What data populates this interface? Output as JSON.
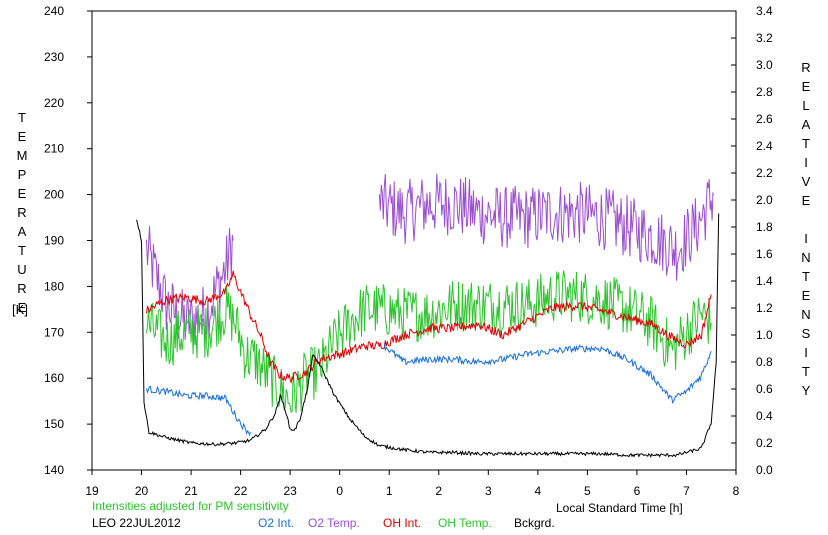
{
  "chart_data": {
    "type": "line",
    "left_axis": {
      "label_letters": [
        "T",
        "E",
        "M",
        "P",
        "E",
        "R",
        "A",
        "T",
        "U",
        "R",
        "E"
      ],
      "unit": "[K]",
      "range": [
        140,
        240
      ],
      "ticks": [
        "140",
        "150",
        "160",
        "170",
        "180",
        "190",
        "200",
        "210",
        "220",
        "230",
        "240"
      ]
    },
    "right_axis": {
      "label_letters": [
        "R",
        "E",
        "L",
        "A",
        "T",
        "I",
        "V",
        "E",
        "",
        "I",
        "N",
        "T",
        "E",
        "N",
        "S",
        "I",
        "T",
        "Y"
      ],
      "range": [
        0.0,
        3.4
      ],
      "ticks": [
        "0.0",
        "0.2",
        "0.4",
        "0.6",
        "0.8",
        "1.0",
        "1.2",
        "1.4",
        "1.6",
        "1.8",
        "2.0",
        "2.2",
        "2.4",
        "2.6",
        "2.8",
        "3.0",
        "3.2",
        "3.4"
      ]
    },
    "x_axis": {
      "label": "Local Standard Time [h]",
      "range": [
        19,
        32
      ],
      "ticks": [
        "19",
        "20",
        "21",
        "22",
        "23",
        "0",
        "1",
        "2",
        "3",
        "4",
        "5",
        "6",
        "7",
        "8"
      ]
    },
    "notes": {
      "adjusted": "Intensities adjusted for PM sensitivity",
      "station_date": "LEO 22JUL2012"
    },
    "legend": [
      {
        "label": "O2 Int.",
        "color": "#1a6fd6"
      },
      {
        "label": "O2 Temp.",
        "color": "#9a4fd0"
      },
      {
        "label": "OH Int.",
        "color": "#dd0000"
      },
      {
        "label": "OH Temp.",
        "color": "#2ec42e"
      },
      {
        "label": "Bckgrd.",
        "color": "#000000"
      }
    ],
    "series": [
      {
        "name": "O2 Temp.",
        "color": "#9a4fd0",
        "axis": "left",
        "noise": 7,
        "segments": [
          [
            [
              20.1,
              188
            ],
            [
              20.5,
              176
            ],
            [
              20.9,
              172
            ],
            [
              21.3,
              174
            ],
            [
              21.7,
              184
            ],
            [
              21.85,
              190
            ]
          ],
          [
            [
              24.8,
              198
            ],
            [
              25.3,
              196
            ],
            [
              25.8,
              198
            ],
            [
              26.3,
              198
            ],
            [
              26.8,
              196
            ],
            [
              27.3,
              195
            ],
            [
              27.8,
              195
            ],
            [
              28.3,
              196
            ],
            [
              28.8,
              196
            ],
            [
              29.3,
              195
            ],
            [
              29.8,
              193
            ],
            [
              30.3,
              191
            ],
            [
              30.8,
              188
            ],
            [
              31.2,
              193
            ],
            [
              31.5,
              199
            ],
            [
              31.55,
              200
            ]
          ]
        ]
      },
      {
        "name": "OH Temp.",
        "color": "#2ec42e",
        "axis": "left",
        "noise": 6,
        "segments": [
          [
            [
              20.1,
              172
            ],
            [
              20.5,
              168
            ],
            [
              20.9,
              170
            ],
            [
              21.3,
              170
            ],
            [
              21.7,
              175
            ],
            [
              21.9,
              172
            ],
            [
              22.1,
              165
            ],
            [
              22.3,
              164
            ],
            [
              22.6,
              160
            ],
            [
              23.0,
              155
            ],
            [
              23.3,
              160
            ],
            [
              23.6,
              162
            ],
            [
              23.9,
              168
            ],
            [
              24.2,
              172
            ],
            [
              24.5,
              175
            ],
            [
              24.8,
              175
            ],
            [
              25.3,
              174
            ],
            [
              25.8,
              174
            ],
            [
              26.3,
              176
            ],
            [
              26.8,
              176
            ],
            [
              27.3,
              176
            ],
            [
              27.8,
              176
            ],
            [
              28.3,
              178
            ],
            [
              28.8,
              178
            ],
            [
              29.3,
              177
            ],
            [
              29.8,
              175
            ],
            [
              30.3,
              172
            ],
            [
              30.7,
              166
            ],
            [
              31.0,
              170
            ],
            [
              31.3,
              174
            ],
            [
              31.5,
              172
            ]
          ]
        ]
      },
      {
        "name": "OH Int.",
        "color": "#dd0000",
        "axis": "right",
        "noise": 0.035,
        "segments": [
          [
            [
              20.1,
              1.18
            ],
            [
              20.5,
              1.26
            ],
            [
              20.9,
              1.28
            ],
            [
              21.3,
              1.25
            ],
            [
              21.7,
              1.32
            ],
            [
              21.85,
              1.45
            ],
            [
              22.0,
              1.32
            ],
            [
              22.2,
              1.15
            ],
            [
              22.4,
              1.0
            ],
            [
              22.6,
              0.8
            ],
            [
              22.8,
              0.7
            ],
            [
              23.0,
              0.68
            ],
            [
              23.3,
              0.72
            ],
            [
              23.6,
              0.82
            ],
            [
              23.9,
              0.85
            ],
            [
              24.2,
              0.88
            ],
            [
              24.5,
              0.92
            ],
            [
              24.8,
              0.92
            ],
            [
              25.3,
              1.0
            ],
            [
              25.8,
              1.05
            ],
            [
              26.3,
              1.05
            ],
            [
              26.8,
              1.08
            ],
            [
              27.3,
              1.0
            ],
            [
              27.8,
              1.1
            ],
            [
              28.3,
              1.2
            ],
            [
              28.8,
              1.22
            ],
            [
              29.3,
              1.18
            ],
            [
              29.8,
              1.13
            ],
            [
              30.3,
              1.08
            ],
            [
              30.7,
              0.98
            ],
            [
              31.0,
              0.93
            ],
            [
              31.3,
              1.0
            ],
            [
              31.5,
              1.3
            ]
          ]
        ]
      },
      {
        "name": "O2 Int.",
        "color": "#1a6fd6",
        "axis": "right",
        "noise": 0.025,
        "segments": [
          [
            [
              20.1,
              0.6
            ],
            [
              20.5,
              0.58
            ],
            [
              20.9,
              0.55
            ],
            [
              21.3,
              0.55
            ],
            [
              21.7,
              0.53
            ],
            [
              21.9,
              0.4
            ],
            [
              22.1,
              0.3
            ],
            [
              22.2,
              0.28
            ]
          ],
          [
            [
              24.9,
              0.92
            ],
            [
              25.3,
              0.8
            ],
            [
              25.8,
              0.82
            ],
            [
              26.3,
              0.82
            ],
            [
              26.8,
              0.8
            ],
            [
              27.3,
              0.82
            ],
            [
              27.8,
              0.86
            ],
            [
              28.3,
              0.88
            ],
            [
              28.8,
              0.9
            ],
            [
              29.3,
              0.9
            ],
            [
              29.8,
              0.82
            ],
            [
              30.3,
              0.7
            ],
            [
              30.7,
              0.52
            ],
            [
              31.0,
              0.58
            ],
            [
              31.3,
              0.7
            ],
            [
              31.5,
              0.88
            ]
          ]
        ]
      },
      {
        "name": "Bckgrd.",
        "color": "#000000",
        "axis": "right",
        "noise": 0.012,
        "segments": [
          [
            [
              19.9,
              1.86
            ],
            [
              20.0,
              1.7
            ],
            [
              20.05,
              0.5
            ],
            [
              20.15,
              0.28
            ],
            [
              20.5,
              0.24
            ],
            [
              21.0,
              0.2
            ],
            [
              21.5,
              0.19
            ],
            [
              21.9,
              0.2
            ],
            [
              22.2,
              0.22
            ],
            [
              22.5,
              0.3
            ],
            [
              22.7,
              0.42
            ],
            [
              22.8,
              0.55
            ],
            [
              22.9,
              0.45
            ],
            [
              23.0,
              0.3
            ],
            [
              23.1,
              0.3
            ],
            [
              23.2,
              0.38
            ],
            [
              23.35,
              0.6
            ],
            [
              23.45,
              0.85
            ],
            [
              23.6,
              0.78
            ],
            [
              23.9,
              0.55
            ],
            [
              24.2,
              0.38
            ],
            [
              24.5,
              0.25
            ],
            [
              24.8,
              0.18
            ],
            [
              25.3,
              0.15
            ],
            [
              25.8,
              0.13
            ],
            [
              26.3,
              0.13
            ],
            [
              26.8,
              0.12
            ],
            [
              27.3,
              0.12
            ],
            [
              27.8,
              0.12
            ],
            [
              28.3,
              0.12
            ],
            [
              28.8,
              0.12
            ],
            [
              29.3,
              0.12
            ],
            [
              29.8,
              0.11
            ],
            [
              30.3,
              0.11
            ],
            [
              30.8,
              0.11
            ],
            [
              31.3,
              0.16
            ],
            [
              31.5,
              0.35
            ],
            [
              31.6,
              0.8
            ],
            [
              31.65,
              1.9
            ]
          ]
        ]
      }
    ]
  }
}
